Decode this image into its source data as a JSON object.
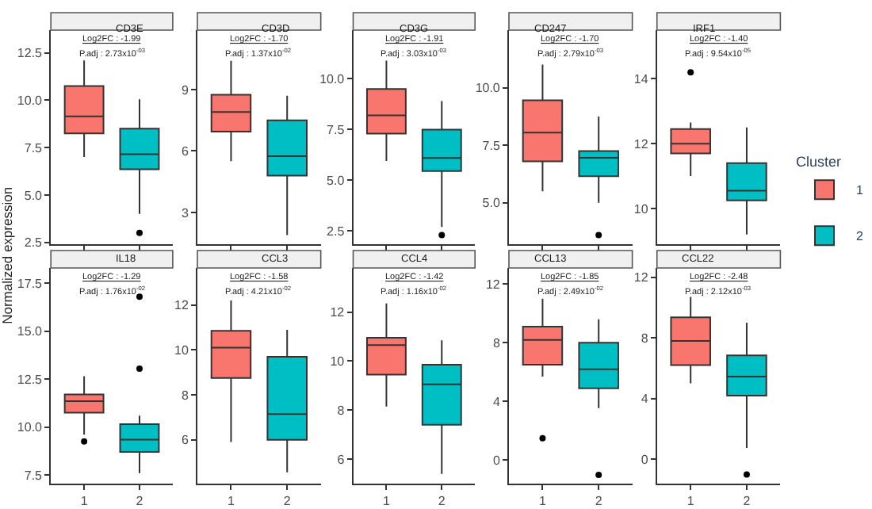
{
  "chart_data": [
    {
      "type": "box",
      "title": "CD3E",
      "ylabel": "Normalized expression",
      "legend": "right",
      "legend_title": "Cluster",
      "categories": [
        "1",
        "2"
      ],
      "tick_labels": "y",
      "ylim": [
        2.4,
        13.7
      ],
      "yticks": [
        2.5,
        {
          "value": 5,
          "label": "5.0"
        },
        7.5,
        {
          "value": 10,
          "label": "10.0"
        },
        12.5
      ],
      "annotations": [
        "Log2FC : -1.99",
        "P.adj : 2.73x10$^{-03}$"
      ],
      "series": [
        {
          "name": "1",
          "color": "#f8766d",
          "boxes": [
            {
              "low": 7.0,
              "q1": 8.25,
              "median": 9.15,
              "q3": 10.75,
              "high": 12.1
            },
            null
          ]
        },
        {
          "name": "2",
          "color": "#00bfc4",
          "boxes": [
            null,
            {
              "low": 4.0,
              "q1": 6.35,
              "median": 7.15,
              "q3": 8.5,
              "high": 10.05,
              "outliers": [
                3.0
              ]
            }
          ]
        }
      ]
    },
    {
      "type": "box",
      "title": "CD3D",
      "categories": [
        "1",
        "2"
      ],
      "tick_labels": "y",
      "ylim": [
        1.45,
        11.9
      ],
      "yticks": [
        3,
        6,
        9
      ],
      "annotations": [
        "Log2FC : -1.70",
        "P.adj : 1.37x10$^{-02}$"
      ],
      "series": [
        {
          "color": "#f8766d",
          "boxes": [
            {
              "low": 5.5,
              "q1": 6.95,
              "median": 7.9,
              "q3": 8.75,
              "high": 10.4
            },
            null
          ]
        },
        {
          "color": "#00bfc4",
          "boxes": [
            null,
            {
              "low": 1.9,
              "q1": 4.8,
              "median": 5.75,
              "q3": 7.5,
              "high": 8.7
            }
          ]
        }
      ]
    },
    {
      "type": "box",
      "title": "CD3G",
      "categories": [
        "1",
        "2"
      ],
      "tick_labels": "y",
      "ylim": [
        1.85,
        12.4
      ],
      "yticks": [
        2.5,
        {
          "value": 5,
          "label": "5.0"
        },
        7.5,
        {
          "value": 10,
          "label": "10.0"
        }
      ],
      "annotations": [
        "Log2FC : -1.91",
        "P.adj : 3.03x10$^{-03}$"
      ],
      "series": [
        {
          "color": "#f8766d",
          "boxes": [
            {
              "low": 5.95,
              "q1": 7.3,
              "median": 8.2,
              "q3": 9.5,
              "high": 10.9
            },
            null
          ]
        },
        {
          "color": "#00bfc4",
          "boxes": [
            null,
            {
              "low": 2.7,
              "q1": 5.45,
              "median": 6.1,
              "q3": 7.5,
              "high": 8.9,
              "outliers": [
                2.3
              ]
            }
          ]
        }
      ]
    },
    {
      "type": "box",
      "title": "CD247",
      "categories": [
        "1",
        "2"
      ],
      "tick_labels": "y",
      "ylim": [
        3.2,
        12.5
      ],
      "yticks": [
        {
          "value": 5,
          "label": "5.0"
        },
        7.5,
        {
          "value": 10,
          "label": "10.0"
        }
      ],
      "annotations": [
        "Log2FC : -1.70",
        "P.adj : 2.79x10$^{-03}$"
      ],
      "series": [
        {
          "color": "#f8766d",
          "boxes": [
            {
              "low": 5.5,
              "q1": 6.8,
              "median": 8.05,
              "q3": 9.45,
              "high": 11.0
            },
            null
          ]
        },
        {
          "color": "#00bfc4",
          "boxes": [
            null,
            {
              "low": 5.0,
              "q1": 6.15,
              "median": 6.95,
              "q3": 7.25,
              "high": 8.75,
              "outliers": [
                3.6
              ]
            }
          ]
        }
      ]
    },
    {
      "type": "box",
      "title": "IRF1",
      "categories": [
        "1",
        "2"
      ],
      "tick_labels": "y",
      "ylim": [
        8.9,
        15.5
      ],
      "yticks": [
        10,
        12,
        14
      ],
      "annotations": [
        "Log2FC : -1.40",
        "P.adj : 9.54x10$^{-05}$"
      ],
      "series": [
        {
          "color": "#f8766d",
          "boxes": [
            {
              "low": 11.0,
              "q1": 11.7,
              "median": 12.0,
              "q3": 12.45,
              "high": 12.65,
              "outliers": [
                14.2
              ]
            },
            null
          ]
        },
        {
          "color": "#00bfc4",
          "boxes": [
            null,
            {
              "low": 9.2,
              "q1": 10.25,
              "median": 10.55,
              "q3": 11.4,
              "high": 12.5
            }
          ]
        }
      ]
    },
    {
      "type": "box",
      "title": "IL18",
      "categories": [
        "1",
        "2"
      ],
      "ylim": [
        7.05,
        18.3
      ],
      "yticks": [
        7.5,
        {
          "value": 10,
          "label": "10.0"
        },
        12.5,
        {
          "value": 15,
          "label": "15.0"
        },
        17.5
      ],
      "annotations": [
        "Log2FC : -1.29",
        "P.adj : 1.76x10$^{-02}$"
      ],
      "series": [
        {
          "color": "#f8766d",
          "boxes": [
            {
              "low": 9.6,
              "q1": 10.75,
              "median": 11.35,
              "q3": 11.7,
              "high": 12.65,
              "outliers": [
                9.25
              ]
            },
            null
          ]
        },
        {
          "color": "#00bfc4",
          "boxes": [
            null,
            {
              "low": 7.6,
              "q1": 8.7,
              "median": 9.35,
              "q3": 10.15,
              "high": 10.6,
              "outliers": [
                13.05,
                16.8
              ]
            }
          ]
        }
      ]
    },
    {
      "type": "box",
      "title": "CCL3",
      "categories": [
        "1",
        "2"
      ],
      "ylim": [
        4.05,
        13.65
      ],
      "yticks": [
        6,
        8,
        10,
        12
      ],
      "annotations": [
        "Log2FC : -1.58",
        "P.adj : 4.21x10$^{-02}$"
      ],
      "series": [
        {
          "color": "#f8766d",
          "boxes": [
            {
              "low": 5.9,
              "q1": 8.75,
              "median": 10.1,
              "q3": 10.85,
              "high": 12.2
            },
            null
          ]
        },
        {
          "color": "#00bfc4",
          "boxes": [
            null,
            {
              "low": 4.55,
              "q1": 6.0,
              "median": 7.15,
              "q3": 9.7,
              "high": 10.9
            }
          ]
        }
      ]
    },
    {
      "type": "box",
      "title": "CCL4",
      "categories": [
        "1",
        "2"
      ],
      "ylim": [
        5.0,
        13.8
      ],
      "yticks": [
        6,
        8,
        10,
        12
      ],
      "annotations": [
        "Log2FC : -1.42",
        "P.adj : 1.16x10$^{-02}$"
      ],
      "series": [
        {
          "color": "#f8766d",
          "boxes": [
            {
              "low": 8.15,
              "q1": 9.45,
              "median": 10.65,
              "q3": 10.95,
              "high": 12.35
            },
            null
          ]
        },
        {
          "color": "#00bfc4",
          "boxes": [
            null,
            {
              "low": 5.4,
              "q1": 7.4,
              "median": 9.05,
              "q3": 9.85,
              "high": 10.85
            }
          ]
        }
      ]
    },
    {
      "type": "box",
      "title": "CCL13",
      "categories": [
        "1",
        "2"
      ],
      "ylim": [
        -1.6,
        13.1
      ],
      "yticks": [
        0,
        4,
        8,
        12
      ],
      "annotations": [
        "Log2FC : -1.85",
        "P.adj : 2.49x10$^{-02}$"
      ],
      "series": [
        {
          "color": "#f8766d",
          "boxes": [
            {
              "low": 5.7,
              "q1": 6.5,
              "median": 8.2,
              "q3": 9.1,
              "high": 11.0,
              "outliers": [
                1.5
              ]
            },
            null
          ]
        },
        {
          "color": "#00bfc4",
          "boxes": [
            null,
            {
              "low": 3.55,
              "q1": 4.9,
              "median": 6.2,
              "q3": 8.0,
              "high": 9.6,
              "outliers": [
                -1.0
              ]
            }
          ]
        }
      ]
    },
    {
      "type": "box",
      "title": "CCL22",
      "categories": [
        "1",
        "2"
      ],
      "ylim": [
        -1.6,
        12.6
      ],
      "yticks": [
        0,
        4,
        8,
        12
      ],
      "annotations": [
        "Log2FC : -2.48",
        "P.adj : 2.12x10$^{-03}$"
      ],
      "series": [
        {
          "color": "#f8766d",
          "boxes": [
            {
              "low": 5.0,
              "q1": 6.2,
              "median": 7.8,
              "q3": 9.35,
              "high": 10.7
            },
            null
          ]
        },
        {
          "color": "#00bfc4",
          "boxes": [
            null,
            {
              "low": 0.75,
              "q1": 4.2,
              "median": 5.45,
              "q3": 6.85,
              "high": 9.0,
              "outliers": [
                -1.0
              ]
            }
          ]
        }
      ]
    }
  ]
}
